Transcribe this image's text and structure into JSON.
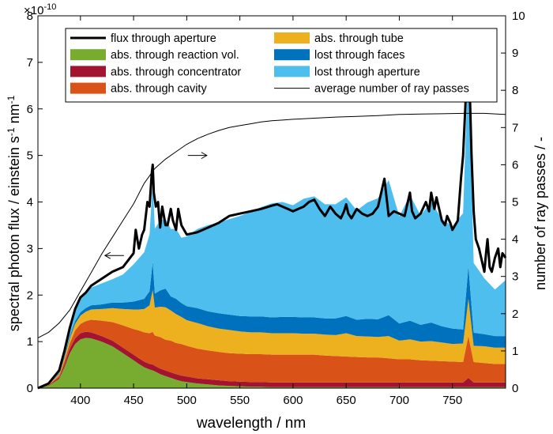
{
  "chart_data": {
    "type": "area",
    "title": "",
    "xlabel": "wavelength / nm",
    "ylabel": "spectral photon flux / einstein s⁻¹ nm⁻¹",
    "ylabel_parts": [
      "spectral photon flux / einstein s",
      "-1",
      " nm",
      "-1"
    ],
    "y2label": "number of ray passes / -",
    "y_exponent_label": "×10",
    "y_exponent_power": "-10",
    "xlim": [
      360,
      800
    ],
    "ylim": [
      0,
      8
    ],
    "y2lim": [
      0,
      10
    ],
    "xticks": [
      400,
      450,
      500,
      550,
      600,
      650,
      700,
      750
    ],
    "yticks": [
      0,
      1,
      2,
      3,
      4,
      5,
      6,
      7,
      8
    ],
    "y2ticks": [
      0,
      1,
      2,
      3,
      4,
      5,
      6,
      7,
      8,
      9,
      10
    ],
    "grid": false,
    "legend_position": "top",
    "colors": {
      "reaction": "#77ac30",
      "concentrator": "#a2142f",
      "cavity": "#d95319",
      "tube": "#edb120",
      "faces": "#0072bd",
      "aperture": "#4dbeee"
    },
    "legend": [
      {
        "label": "flux through aperture",
        "style": "thick-line",
        "color": "#000000"
      },
      {
        "label": "abs. through reaction vol.",
        "style": "patch",
        "color": "#77ac30"
      },
      {
        "label": "abs. through concentrator",
        "style": "patch",
        "color": "#a2142f"
      },
      {
        "label": "abs. through cavity",
        "style": "patch",
        "color": "#d95319"
      },
      {
        "label": "abs. through tube",
        "style": "patch",
        "color": "#edb120"
      },
      {
        "label": "lost through faces",
        "style": "patch",
        "color": "#0072bd"
      },
      {
        "label": "lost through aperture",
        "style": "patch",
        "color": "#4dbeee"
      },
      {
        "label": "average number of ray passes",
        "style": "thin-line",
        "color": "#000000"
      }
    ],
    "stacked_layers_x": [
      360,
      370,
      380,
      385,
      390,
      395,
      400,
      405,
      410,
      420,
      430,
      440,
      450,
      455,
      460,
      465,
      468,
      470,
      475,
      480,
      485,
      490,
      495,
      500,
      510,
      520,
      530,
      540,
      550,
      560,
      570,
      580,
      590,
      600,
      610,
      620,
      630,
      640,
      650,
      660,
      670,
      680,
      690,
      700,
      710,
      720,
      730,
      740,
      750,
      760,
      765,
      770,
      780,
      790,
      800
    ],
    "series": [
      {
        "name": "abs. through reaction vol.",
        "values": [
          0,
          0.05,
          0.2,
          0.45,
          0.75,
          0.95,
          1.05,
          1.08,
          1.07,
          1.0,
          0.9,
          0.75,
          0.6,
          0.52,
          0.45,
          0.4,
          0.38,
          0.36,
          0.3,
          0.26,
          0.22,
          0.18,
          0.15,
          0.13,
          0.1,
          0.08,
          0.06,
          0.05,
          0.04,
          0.03,
          0.03,
          0.02,
          0.02,
          0.02,
          0.02,
          0.02,
          0.02,
          0.02,
          0.02,
          0.02,
          0.02,
          0.02,
          0.02,
          0.02,
          0.02,
          0.02,
          0.02,
          0.02,
          0.02,
          0.02,
          0.02,
          0.02,
          0.02,
          0.02,
          0.02
        ]
      },
      {
        "name": "abs. through concentrator",
        "values": [
          0,
          0.01,
          0.03,
          0.06,
          0.1,
          0.12,
          0.13,
          0.13,
          0.13,
          0.12,
          0.12,
          0.12,
          0.12,
          0.12,
          0.12,
          0.12,
          0.13,
          0.12,
          0.12,
          0.12,
          0.12,
          0.12,
          0.12,
          0.12,
          0.11,
          0.11,
          0.11,
          0.1,
          0.1,
          0.1,
          0.1,
          0.1,
          0.1,
          0.1,
          0.1,
          0.1,
          0.1,
          0.1,
          0.1,
          0.1,
          0.1,
          0.1,
          0.1,
          0.1,
          0.1,
          0.1,
          0.1,
          0.1,
          0.1,
          0.1,
          0.2,
          0.1,
          0.1,
          0.1,
          0.1
        ]
      },
      {
        "name": "abs. through cavity",
        "values": [
          0,
          0.01,
          0.04,
          0.08,
          0.12,
          0.17,
          0.2,
          0.23,
          0.27,
          0.33,
          0.4,
          0.48,
          0.55,
          0.6,
          0.63,
          0.66,
          0.7,
          0.65,
          0.68,
          0.66,
          0.68,
          0.67,
          0.68,
          0.66,
          0.64,
          0.62,
          0.61,
          0.6,
          0.6,
          0.6,
          0.6,
          0.6,
          0.6,
          0.6,
          0.6,
          0.6,
          0.58,
          0.57,
          0.56,
          0.55,
          0.54,
          0.54,
          0.52,
          0.5,
          0.5,
          0.48,
          0.47,
          0.46,
          0.45,
          0.44,
          0.9,
          0.44,
          0.42,
          0.4,
          0.4
        ]
      },
      {
        "name": "abs. through tube",
        "values": [
          0,
          0.01,
          0.03,
          0.06,
          0.1,
          0.14,
          0.18,
          0.2,
          0.22,
          0.25,
          0.3,
          0.35,
          0.42,
          0.45,
          0.5,
          0.6,
          0.9,
          0.6,
          0.65,
          0.7,
          0.65,
          0.62,
          0.58,
          0.55,
          0.55,
          0.52,
          0.5,
          0.5,
          0.48,
          0.47,
          0.47,
          0.46,
          0.46,
          0.46,
          0.45,
          0.45,
          0.45,
          0.45,
          0.5,
          0.45,
          0.45,
          0.44,
          0.48,
          0.4,
          0.43,
          0.4,
          0.42,
          0.4,
          0.38,
          0.4,
          0.8,
          0.35,
          0.36,
          0.35,
          0.35
        ]
      },
      {
        "name": "lost through faces",
        "values": [
          0,
          0.01,
          0.02,
          0.04,
          0.05,
          0.06,
          0.07,
          0.08,
          0.09,
          0.1,
          0.12,
          0.14,
          0.17,
          0.2,
          0.22,
          0.3,
          0.6,
          0.3,
          0.35,
          0.4,
          0.3,
          0.33,
          0.3,
          0.3,
          0.32,
          0.32,
          0.33,
          0.33,
          0.33,
          0.34,
          0.34,
          0.34,
          0.35,
          0.35,
          0.35,
          0.35,
          0.35,
          0.36,
          0.37,
          0.35,
          0.38,
          0.38,
          0.45,
          0.37,
          0.4,
          0.36,
          0.4,
          0.35,
          0.33,
          0.3,
          0.7,
          0.28,
          0.26,
          0.25,
          0.25
        ]
      },
      {
        "name": "lost through aperture",
        "values": [
          0,
          0.02,
          0.06,
          0.1,
          0.15,
          0.24,
          0.3,
          0.34,
          0.38,
          0.45,
          0.5,
          0.6,
          0.8,
          0.9,
          1.0,
          1.22,
          1.74,
          1.4,
          1.5,
          1.5,
          1.45,
          1.5,
          1.4,
          1.5,
          1.7,
          1.85,
          1.95,
          2.05,
          2.15,
          2.25,
          2.35,
          2.45,
          2.47,
          2.4,
          2.55,
          2.6,
          2.45,
          2.45,
          2.55,
          2.35,
          2.5,
          2.6,
          2.9,
          2.3,
          2.7,
          2.35,
          2.6,
          2.3,
          2.2,
          2.5,
          4.5,
          1.5,
          1.2,
          1.0,
          1.2
        ]
      }
    ],
    "flux_through_aperture": {
      "name": "flux through aperture",
      "x": [
        360,
        370,
        380,
        385,
        390,
        395,
        400,
        405,
        410,
        420,
        430,
        440,
        450,
        452,
        455,
        458,
        460,
        463,
        465,
        467,
        468,
        469,
        471,
        473,
        475,
        477,
        480,
        482,
        485,
        487,
        490,
        492,
        495,
        500,
        510,
        520,
        530,
        540,
        550,
        560,
        570,
        580,
        585,
        590,
        595,
        600,
        605,
        610,
        615,
        620,
        625,
        630,
        635,
        640,
        645,
        648,
        650,
        652,
        655,
        660,
        665,
        670,
        675,
        680,
        684,
        686,
        688,
        690,
        695,
        700,
        705,
        708,
        710,
        712,
        715,
        720,
        725,
        728,
        730,
        733,
        735,
        738,
        740,
        743,
        745,
        748,
        750,
        755,
        758,
        760,
        762,
        764,
        765,
        766,
        768,
        770,
        772,
        775,
        778,
        780,
        782,
        783,
        785,
        787,
        790,
        793,
        795,
        797,
        800
      ],
      "y": [
        0,
        0.1,
        0.38,
        0.8,
        1.3,
        1.7,
        1.95,
        2.05,
        2.2,
        2.35,
        2.5,
        2.6,
        2.9,
        3.4,
        3.0,
        3.3,
        3.4,
        4.0,
        3.9,
        4.6,
        4.8,
        4.2,
        3.9,
        4.0,
        3.45,
        3.9,
        3.5,
        3.5,
        3.85,
        3.6,
        3.4,
        3.85,
        3.5,
        3.3,
        3.35,
        3.45,
        3.55,
        3.7,
        3.75,
        3.8,
        3.85,
        3.92,
        3.95,
        3.9,
        3.85,
        3.8,
        3.85,
        3.9,
        4.0,
        4.05,
        3.85,
        3.7,
        3.9,
        3.75,
        3.65,
        3.8,
        3.95,
        3.75,
        3.65,
        3.85,
        3.75,
        3.7,
        3.75,
        3.9,
        4.3,
        4.5,
        4.1,
        3.7,
        3.8,
        3.75,
        3.7,
        4.0,
        4.2,
        3.8,
        3.65,
        3.75,
        4.0,
        3.8,
        4.2,
        3.85,
        4.1,
        3.8,
        3.6,
        3.5,
        3.7,
        3.55,
        3.4,
        3.6,
        4.5,
        5.0,
        6.0,
        7.0,
        7.3,
        6.6,
        5.0,
        3.8,
        3.2,
        3.0,
        2.7,
        2.5,
        3.0,
        3.2,
        2.6,
        2.5,
        2.8,
        3.0,
        2.6,
        2.9,
        2.8
      ]
    },
    "average_number_of_ray_passes": {
      "name": "average number of ray passes",
      "axis": "right",
      "x": [
        360,
        370,
        380,
        390,
        400,
        410,
        420,
        430,
        440,
        450,
        460,
        470,
        480,
        490,
        500,
        510,
        520,
        530,
        540,
        550,
        560,
        570,
        580,
        590,
        600,
        620,
        640,
        660,
        680,
        700,
        720,
        740,
        760,
        780,
        800
      ],
      "y": [
        1.35,
        1.5,
        1.75,
        2.1,
        2.6,
        3.1,
        3.6,
        4.05,
        4.5,
        4.95,
        5.5,
        5.9,
        6.15,
        6.35,
        6.55,
        6.7,
        6.82,
        6.92,
        7.0,
        7.05,
        7.1,
        7.15,
        7.18,
        7.2,
        7.22,
        7.25,
        7.28,
        7.3,
        7.32,
        7.35,
        7.36,
        7.37,
        7.38,
        7.38,
        7.35
      ]
    },
    "annotations": [
      {
        "type": "arrow",
        "direction": "right",
        "x": 510,
        "y2": 6.25
      },
      {
        "type": "arrow",
        "direction": "left",
        "x": 432,
        "y": 2.85
      }
    ]
  }
}
